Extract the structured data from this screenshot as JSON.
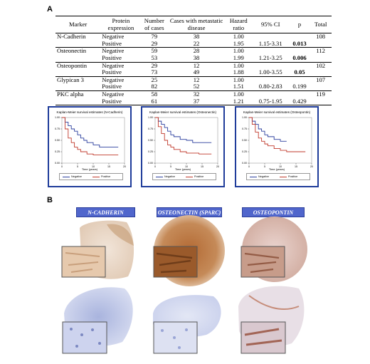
{
  "panels": {
    "a_label": "A",
    "b_label": "B"
  },
  "table": {
    "headers": [
      "Marker",
      "Protein expression",
      "Number of cases",
      "Cases with metastatic disease",
      "Hazard ratio",
      "95% CI",
      "p",
      "Total"
    ],
    "rows": [
      {
        "marker": "N-Cadherin",
        "expression": "Negative",
        "cases": "79",
        "metastatic": "38",
        "hr": "1.00",
        "ci": "",
        "p": "",
        "total": "108"
      },
      {
        "marker": "",
        "expression": "Positive",
        "cases": "29",
        "metastatic": "22",
        "hr": "1.95",
        "ci": "1.15-3.31",
        "p": "0.013",
        "total": ""
      },
      {
        "marker": "Osteonectin",
        "expression": "Negative",
        "cases": "59",
        "metastatic": "28",
        "hr": "1.00",
        "ci": "",
        "p": "",
        "total": "112"
      },
      {
        "marker": "",
        "expression": "Positive",
        "cases": "53",
        "metastatic": "38",
        "hr": "1.99",
        "ci": "1.21-3.25",
        "p": "0.006",
        "total": ""
      },
      {
        "marker": "Osteopontin",
        "expression": "Negative",
        "cases": "29",
        "metastatic": "12",
        "hr": "1.00",
        "ci": "",
        "p": "",
        "total": "102"
      },
      {
        "marker": "",
        "expression": "Positive",
        "cases": "73",
        "metastatic": "49",
        "hr": "1.88",
        "ci": "1.00-3.55",
        "p": "0.05",
        "total": ""
      },
      {
        "marker": "Glypican 3",
        "expression": "Negative",
        "cases": "25",
        "metastatic": "12",
        "hr": "1.00",
        "ci": "",
        "p": "",
        "total": "107"
      },
      {
        "marker": "",
        "expression": "Positive",
        "cases": "82",
        "metastatic": "52",
        "hr": "1.51",
        "ci": "0.80-2.83",
        "p": "0.199",
        "total": ""
      },
      {
        "marker": "PKC alpha",
        "expression": "Negative",
        "cases": "58",
        "metastatic": "32",
        "hr": "1.00",
        "ci": "",
        "p": "",
        "total": "119"
      },
      {
        "marker": "",
        "expression": "Positive",
        "cases": "61",
        "metastatic": "37",
        "hr": "1.21",
        "ci": "0.75-1.95",
        "p": "0.429",
        "total": ""
      }
    ],
    "bold_p": [
      "0.013",
      "0.006",
      "0.05"
    ]
  },
  "chart_data": [
    {
      "type": "line",
      "title": "Kaplan-Meier survival estimates (N-Cadherin)",
      "xlabel": "Time (years)",
      "xlim": [
        0,
        20
      ],
      "ylim": [
        0,
        1
      ],
      "xticks": [
        "0",
        "5",
        "10",
        "15",
        "20"
      ],
      "yticks": [
        "0.00",
        "0.25",
        "0.50",
        "0.75",
        "1.00"
      ],
      "series": [
        {
          "name": "Negative",
          "color": "#2b3f9e",
          "x": [
            0,
            1,
            2,
            3,
            4,
            5,
            6,
            7,
            8,
            10,
            12,
            14,
            18
          ],
          "y": [
            1.0,
            0.9,
            0.82,
            0.75,
            0.7,
            0.62,
            0.55,
            0.5,
            0.45,
            0.4,
            0.35,
            0.35,
            0.35
          ]
        },
        {
          "name": "Positive",
          "color": "#c0392b",
          "x": [
            0,
            1,
            2,
            3,
            4,
            5,
            6,
            8,
            10,
            14,
            18
          ],
          "y": [
            1.0,
            0.75,
            0.55,
            0.45,
            0.35,
            0.3,
            0.25,
            0.2,
            0.18,
            0.18,
            0.18
          ]
        }
      ]
    },
    {
      "type": "line",
      "title": "Kaplan-Meier survival estimates (Osteonectin)",
      "xlabel": "Time (years)",
      "xlim": [
        0,
        20
      ],
      "ylim": [
        0,
        1
      ],
      "xticks": [
        "0",
        "5",
        "10",
        "15",
        "20"
      ],
      "yticks": [
        "0.00",
        "0.25",
        "0.50",
        "0.75",
        "1.00"
      ],
      "series": [
        {
          "name": "Negative",
          "color": "#2b3f9e",
          "x": [
            0,
            1,
            2,
            3,
            4,
            5,
            6,
            8,
            10,
            12,
            15,
            18
          ],
          "y": [
            1.0,
            0.92,
            0.85,
            0.78,
            0.7,
            0.62,
            0.58,
            0.52,
            0.5,
            0.45,
            0.45,
            0.45
          ]
        },
        {
          "name": "Positive",
          "color": "#c0392b",
          "x": [
            0,
            1,
            2,
            3,
            4,
            5,
            6,
            8,
            10,
            14,
            18
          ],
          "y": [
            1.0,
            0.8,
            0.65,
            0.5,
            0.4,
            0.35,
            0.3,
            0.25,
            0.22,
            0.2,
            0.2
          ]
        }
      ]
    },
    {
      "type": "line",
      "title": "Kaplan-Meier survival estimates (Osteopontin)",
      "xlabel": "Time (years)",
      "xlim": [
        0,
        20
      ],
      "ylim": [
        0,
        1
      ],
      "xticks": [
        "0",
        "5",
        "10",
        "15",
        "20"
      ],
      "yticks": [
        "0.00",
        "0.25",
        "0.50",
        "0.75",
        "1.00"
      ],
      "series": [
        {
          "name": "Negative",
          "color": "#2b3f9e",
          "x": [
            0,
            1,
            2,
            3,
            4,
            5,
            6,
            8,
            10,
            12
          ],
          "y": [
            1.0,
            0.92,
            0.85,
            0.75,
            0.7,
            0.62,
            0.58,
            0.52,
            0.48,
            0.48
          ]
        },
        {
          "name": "Positive",
          "color": "#c0392b",
          "x": [
            0,
            1,
            2,
            3,
            4,
            5,
            6,
            8,
            10,
            12,
            15,
            18
          ],
          "y": [
            1.0,
            0.85,
            0.68,
            0.55,
            0.48,
            0.42,
            0.38,
            0.32,
            0.28,
            0.25,
            0.25,
            0.25
          ]
        }
      ]
    }
  ],
  "ihc": {
    "columns": [
      "N-CADHERIN",
      "OSTEONECTIN (SPARC)",
      "OSTEOPONTIN"
    ],
    "colors": {
      "brown_stain": "#b5733d",
      "light_brown": "#e3c4a8",
      "blue_counterstain": "#8e9bcf",
      "pale_blue": "#dfe3f2",
      "header_blue": "#5066cc"
    }
  }
}
